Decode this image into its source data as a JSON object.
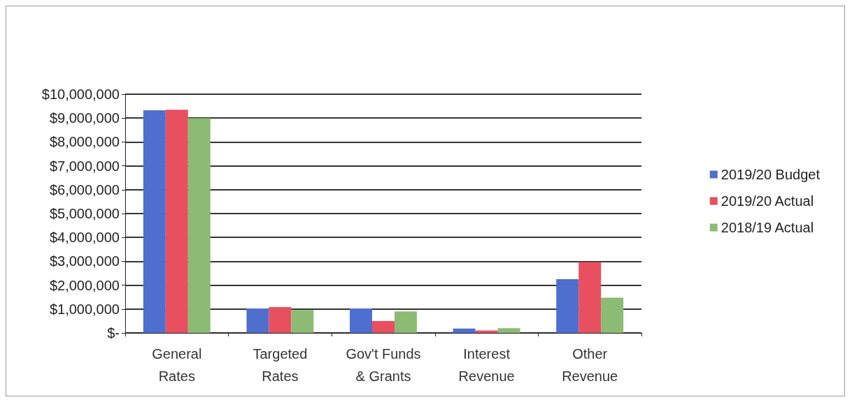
{
  "chart_data": {
    "type": "bar",
    "categories": [
      "General\nRates",
      "Targeted\nRates",
      "Gov't Funds\n& Grants",
      "Interest\nRevenue",
      "Other\nRevenue"
    ],
    "series": [
      {
        "name": "2019/20 Budget",
        "color": "#4f6fd0",
        "values": [
          9330000,
          1020000,
          1020000,
          180000,
          2250000
        ]
      },
      {
        "name": "2019/20 Actual",
        "color": "#e8505f",
        "values": [
          9350000,
          1080000,
          500000,
          100000,
          2970000
        ]
      },
      {
        "name": "2018/19 Actual",
        "color": "#8cbb74",
        "values": [
          9000000,
          960000,
          900000,
          200000,
          1480000
        ]
      }
    ],
    "ylim": [
      0,
      10000000
    ],
    "yticks": [
      {
        "value": 0,
        "label": "$-"
      },
      {
        "value": 1000000,
        "label": "$1,000,000"
      },
      {
        "value": 2000000,
        "label": "$2,000,000"
      },
      {
        "value": 3000000,
        "label": "$3,000,000"
      },
      {
        "value": 4000000,
        "label": "$4,000,000"
      },
      {
        "value": 5000000,
        "label": "$5,000,000"
      },
      {
        "value": 6000000,
        "label": "$6,000,000"
      },
      {
        "value": 7000000,
        "label": "$7,000,000"
      },
      {
        "value": 8000000,
        "label": "$8,000,000"
      },
      {
        "value": 9000000,
        "label": "$9,000,000"
      },
      {
        "value": 10000000,
        "label": "$10,000,000"
      }
    ],
    "grid": "y",
    "legend": "right"
  }
}
